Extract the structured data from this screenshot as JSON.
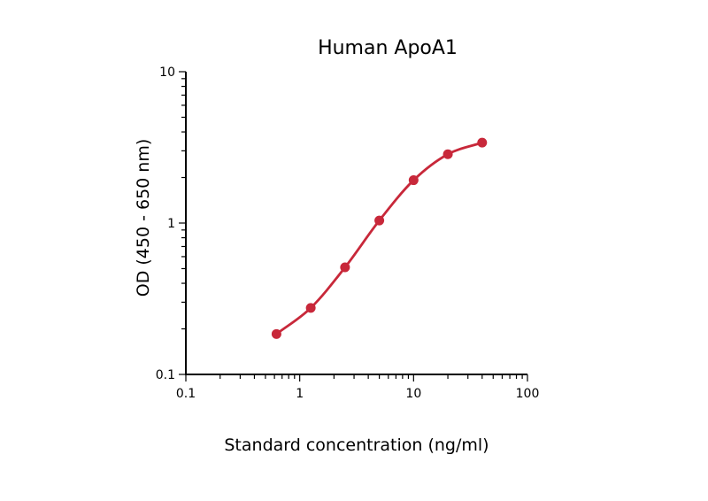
{
  "chart_data": {
    "type": "scatter",
    "title": "Human ApoA1",
    "xlabel": "Standard concentration (ng/ml)",
    "ylabel": "OD (450 - 650 nm)",
    "xscale": "log",
    "yscale": "log",
    "xlim": [
      0.1,
      100
    ],
    "ylim": [
      0.1,
      10
    ],
    "xticks": [
      "0.1",
      "1",
      "10",
      "100"
    ],
    "yticks": [
      "0.1",
      "1",
      "10"
    ],
    "grid": false,
    "legend": "none",
    "color": "#c8283a",
    "series": [
      {
        "x": [
          0.625,
          1.25,
          2.5,
          5,
          10,
          20,
          40
        ],
        "y": [
          0.185,
          0.275,
          0.51,
          1.04,
          1.92,
          2.85,
          3.4
        ],
        "fit": "sigmoid curve"
      }
    ]
  }
}
